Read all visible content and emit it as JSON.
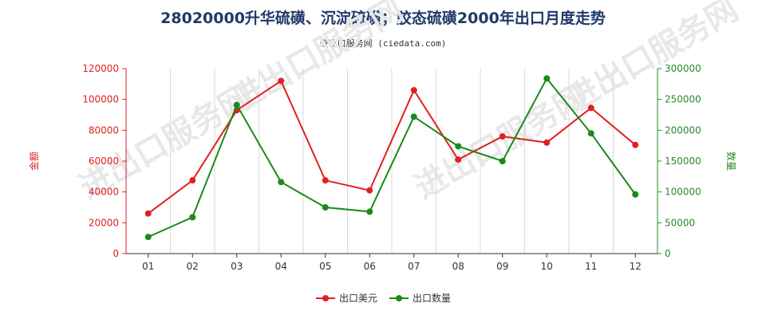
{
  "chart_data": {
    "type": "line",
    "title": "28020000升华硫磺、沉淀硫磺；胶态硫磺2000年出口月度走势",
    "subtitle": "进出口服务网 (ciedata.com)",
    "watermark": "进出口服务网",
    "categories": [
      "01",
      "02",
      "03",
      "04",
      "05",
      "06",
      "07",
      "08",
      "09",
      "10",
      "11",
      "12"
    ],
    "y_left": {
      "label": "金额",
      "range": [
        0,
        120000
      ],
      "ticks": [
        "0",
        "20000",
        "40000",
        "60000",
        "80000",
        "100000",
        "120000"
      ],
      "color": "#e02020"
    },
    "y_right": {
      "label": "数量",
      "range": [
        0,
        300000
      ],
      "ticks": [
        "0",
        "50000",
        "100000",
        "150000",
        "200000",
        "250000",
        "300000"
      ],
      "color": "#2a8a2a"
    },
    "series": [
      {
        "name": "出口美元",
        "axis": "left",
        "color": "#e02020",
        "values": [
          26000,
          47500,
          93000,
          112000,
          47500,
          41000,
          106000,
          61000,
          76000,
          72000,
          94500,
          70500
        ]
      },
      {
        "name": "出口数量",
        "axis": "right",
        "color": "#1a8a1a",
        "values": [
          27000,
          59000,
          241000,
          116000,
          75000,
          68000,
          222000,
          174000,
          150000,
          284000,
          195000,
          96000
        ]
      }
    ],
    "grid": "vertical"
  }
}
